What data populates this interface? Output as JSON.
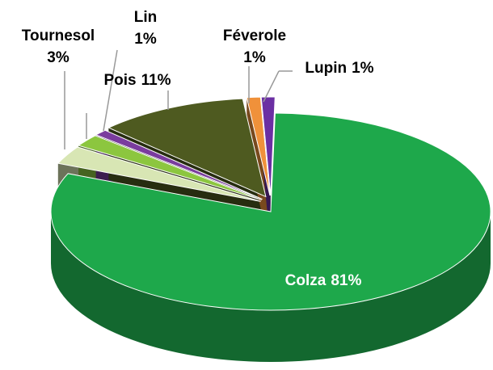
{
  "chart_data": {
    "type": "pie3d",
    "categories": [
      "Colza",
      "Tournesol",
      null,
      "Lin",
      "Pois",
      "Féverole",
      "Lupin"
    ],
    "values": [
      81,
      3,
      2,
      1,
      11,
      1,
      1
    ],
    "value_labels": [
      "81%",
      "3%",
      null,
      "1%",
      "11%",
      "1%",
      "1%"
    ],
    "colors": [
      "#1ea84b",
      "#d8e6b4",
      "#8cc63f",
      "#7a3c9e",
      "#4e5a20",
      "#f0913a",
      "#6b2fa3"
    ]
  }
}
